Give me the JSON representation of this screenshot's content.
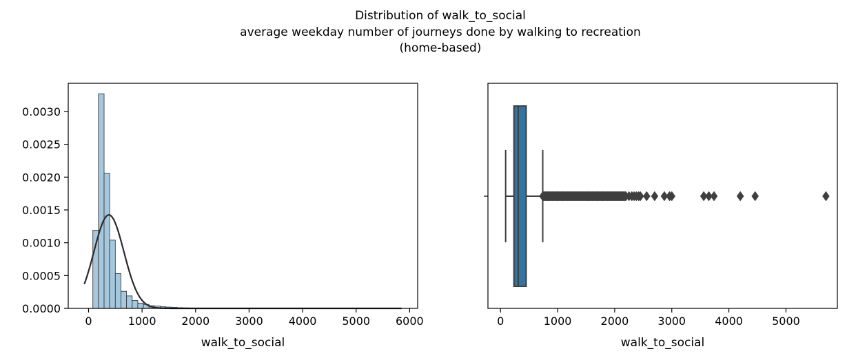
{
  "figure": {
    "title_lines": [
      "Distribution of walk_to_social",
      "average weekday number of journeys done by walking to recreation",
      "(home-based)"
    ]
  },
  "chart_data": [
    {
      "type": "bar",
      "subtype": "histogram_with_kde",
      "xlabel": "walk_to_social",
      "ylabel": "",
      "xlim": [
        -380,
        6150
      ],
      "ylim": [
        0,
        0.00343
      ],
      "x_ticks": [
        0,
        1000,
        2000,
        3000,
        4000,
        5000,
        6000
      ],
      "x_tick_labels": [
        "0",
        "1000",
        "2000",
        "3000",
        "4000",
        "5000",
        "6000"
      ],
      "y_ticks": [
        0,
        0.0005,
        0.001,
        0.0015,
        0.002,
        0.0025,
        0.003
      ],
      "y_tick_labels": [
        "0.0000",
        "0.0005",
        "0.0010",
        "0.0015",
        "0.0020",
        "0.0025",
        "0.0030"
      ],
      "grid": false,
      "bar_color": "#a6c8df",
      "bar_edge_color": "#3a3a3a",
      "kde_color": "#2b2b2b",
      "bins": {
        "edges": [
          80,
          185,
          290,
          395,
          500,
          605,
          710,
          815,
          920,
          1025,
          1130,
          1235,
          1340,
          1445,
          1550,
          1655,
          1760,
          1865,
          1970,
          2075,
          2180
        ],
        "density": [
          0.00119,
          0.00327,
          0.00206,
          0.00104,
          0.00053,
          0.00026,
          0.00019,
          0.00012,
          8e-05,
          6e-05,
          4e-05,
          3.5e-05,
          2.5e-05,
          2e-05,
          1.5e-05,
          1e-05,
          8e-06,
          6e-06,
          5e-06,
          4e-06
        ]
      },
      "kde": {
        "mean": 380,
        "std": 280,
        "x_range": [
          -80,
          5850
        ]
      }
    },
    {
      "type": "box",
      "xlabel": "walk_to_social",
      "xlim": [
        -220,
        5900
      ],
      "x_ticks": [
        0,
        1000,
        2000,
        3000,
        4000,
        5000
      ],
      "x_tick_labels": [
        "0",
        "1000",
        "2000",
        "3000",
        "4000",
        "5000"
      ],
      "grid": false,
      "box_color": "#3274a1",
      "line_color": "#3f3f3f",
      "stats": {
        "whisker_low": 90,
        "q1": 235,
        "median": 310,
        "q3": 450,
        "whisker_high": 740
      },
      "outliers_dense_range": [
        740,
        2200
      ],
      "outliers": [
        2250,
        2300,
        2340,
        2380,
        2420,
        2450,
        2560,
        2700,
        2870,
        2960,
        3000,
        3560,
        3650,
        3740,
        4200,
        4460,
        5700
      ]
    }
  ]
}
